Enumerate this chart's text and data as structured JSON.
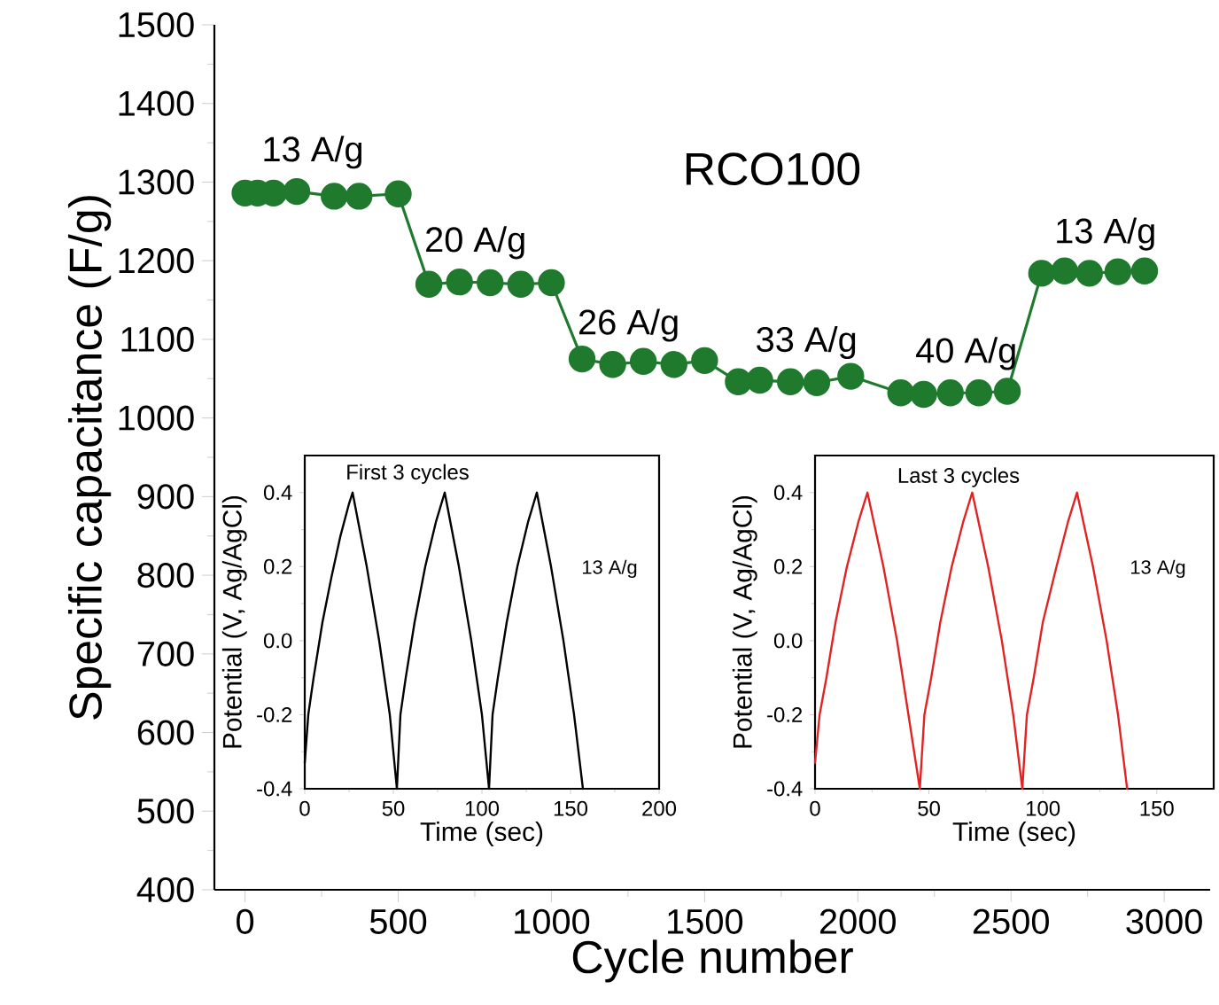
{
  "chart_data": [
    {
      "type": "line",
      "title": "RCO100",
      "xlabel": "Cycle number",
      "ylabel": "Specific capacitance (F/g)",
      "x": [
        0,
        41,
        93,
        169,
        291,
        372,
        500,
        600,
        700,
        800,
        900,
        1000,
        1100,
        1200,
        1300,
        1400,
        1500,
        1610,
        1680,
        1780,
        1866,
        1977,
        2140,
        2215,
        2302,
        2395,
        2488,
        2600,
        2675,
        2756,
        2849,
        2936
      ],
      "series": [
        {
          "color": "#1f7a2e",
          "values": [
            1286,
            1286,
            1286,
            1288,
            1282,
            1282,
            1285,
            1170,
            1173,
            1172,
            1170,
            1172,
            1075,
            1068,
            1072,
            1068,
            1073,
            1046,
            1048,
            1046,
            1045,
            1053,
            1032,
            1030,
            1032,
            1032,
            1034,
            1184,
            1187,
            1184,
            1186,
            1187
          ]
        }
      ],
      "marker": "circle",
      "line_style": "solid",
      "xlim": [
        -100,
        3150
      ],
      "ylim": [
        400,
        1500
      ],
      "xticks": [
        0,
        500,
        1000,
        1500,
        2000,
        2500,
        3000
      ],
      "yticks": [
        400,
        500,
        600,
        700,
        800,
        900,
        1000,
        1100,
        1200,
        1300,
        1400,
        1500
      ],
      "annotations": [
        {
          "text": "13 A/g",
          "x": 169,
          "y": 1288
        },
        {
          "text": "20 A/g",
          "x": 700,
          "y": 1173
        },
        {
          "text": "26 A/g",
          "x": 1200,
          "y": 1068
        },
        {
          "text": "33 A/g",
          "x": 1780,
          "y": 1046
        },
        {
          "text": "40 A/g",
          "x": 2302,
          "y": 1032
        },
        {
          "text": "13 A/g",
          "x": 2756,
          "y": 1184
        }
      ]
    },
    {
      "type": "line",
      "title": "First 3 cycles",
      "xlabel": "Time (sec)",
      "ylabel": "Potential (V, Ag/AgCl)",
      "x": [
        0,
        2,
        5,
        10,
        15,
        20,
        25,
        27,
        35,
        42,
        48,
        52,
        54,
        57,
        62,
        68,
        74,
        79,
        87,
        94,
        100,
        104,
        106,
        109,
        114,
        120,
        126,
        131,
        139,
        146,
        152,
        157
      ],
      "series": [
        {
          "color": "#000000",
          "values": [
            -0.33,
            -0.2,
            -0.1,
            0.05,
            0.17,
            0.28,
            0.37,
            0.4,
            0.2,
            0.0,
            -0.2,
            -0.4,
            -0.2,
            -0.1,
            0.05,
            0.2,
            0.32,
            0.4,
            0.2,
            0.0,
            -0.2,
            -0.4,
            -0.2,
            -0.1,
            0.05,
            0.2,
            0.32,
            0.4,
            0.2,
            0.0,
            -0.2,
            -0.4
          ]
        }
      ],
      "line_style": "solid",
      "xlim": [
        0,
        200
      ],
      "ylim": [
        -0.4,
        0.5
      ],
      "xticks": [
        0,
        50,
        100,
        150,
        200
      ],
      "yticks": [
        -0.4,
        -0.2,
        {
          "value": 0,
          "label": "0.0"
        },
        0.2,
        0.4
      ],
      "annotations": [
        "13 A/g"
      ]
    },
    {
      "type": "line",
      "title": "Last 3 cycles",
      "xlabel": "Time (sec)",
      "ylabel": "Potential (V, Ag/AgCl)",
      "x": [
        0,
        2,
        5,
        9,
        14,
        19,
        23,
        30,
        36,
        41,
        46,
        48,
        51,
        55,
        60,
        65,
        69,
        76,
        82,
        87,
        91,
        93,
        96,
        100,
        106,
        111,
        115,
        122,
        128,
        133,
        137
      ],
      "series": [
        {
          "color": "#e02424",
          "values": [
            -0.33,
            -0.2,
            -0.1,
            0.05,
            0.2,
            0.32,
            0.4,
            0.2,
            0.0,
            -0.2,
            -0.4,
            -0.2,
            -0.1,
            0.05,
            0.2,
            0.32,
            0.4,
            0.2,
            0.0,
            -0.2,
            -0.4,
            -0.2,
            -0.1,
            0.05,
            0.2,
            0.32,
            0.4,
            0.2,
            0.0,
            -0.2,
            -0.4
          ]
        }
      ],
      "line_style": "solid",
      "xlim": [
        0,
        175
      ],
      "ylim": [
        -0.4,
        0.5
      ],
      "xticks": [
        0,
        50,
        100,
        150
      ],
      "yticks": [
        -0.4,
        -0.2,
        {
          "value": 0,
          "label": "0.0"
        },
        0.2,
        0.4
      ],
      "annotations": [
        "13 A/g"
      ]
    }
  ]
}
